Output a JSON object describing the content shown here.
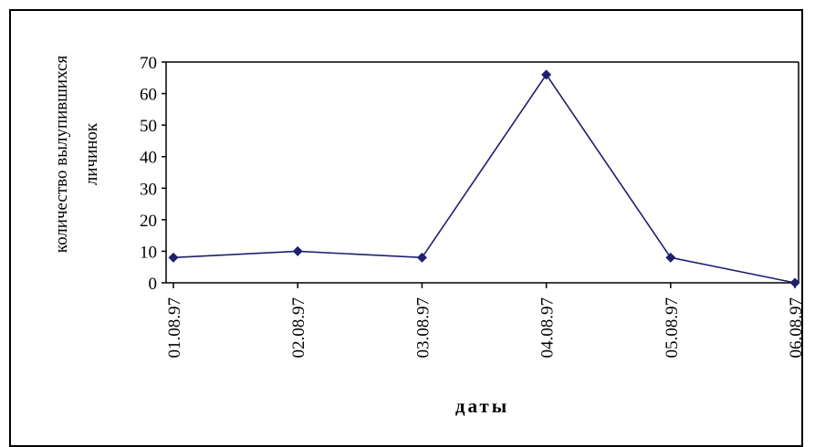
{
  "chart_data": {
    "type": "line",
    "title": "",
    "xlabel": "даты",
    "ylabel_lines": [
      "количество вылупившихся",
      "личинок"
    ],
    "categories": [
      "01.08.97",
      "02.08.97",
      "03.08.97",
      "04.08.97",
      "05.08.97",
      "06.08.97"
    ],
    "series": [
      {
        "values": [
          8,
          10,
          8,
          66,
          8,
          0
        ]
      }
    ],
    "ylim": [
      0,
      70
    ],
    "yticks": [
      0,
      10,
      20,
      30,
      40,
      50,
      60,
      70
    ],
    "grid": false,
    "legend": "none",
    "colors": {
      "line": "#1f1f6e",
      "marker": "#1f1f6e",
      "axis": "#000000"
    }
  }
}
